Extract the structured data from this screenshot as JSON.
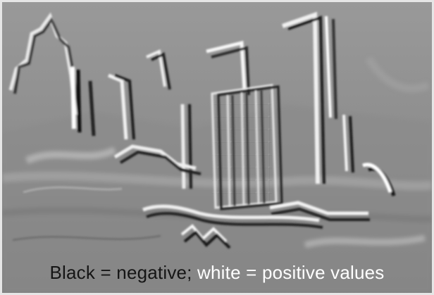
{
  "caption": {
    "black_part": "Black = negative;",
    "white_part": "white = positive values"
  },
  "colors": {
    "background_gray": "#8d8d8d",
    "negative": "#151515",
    "positive": "#ffffff",
    "border": "#e6e6e6"
  }
}
